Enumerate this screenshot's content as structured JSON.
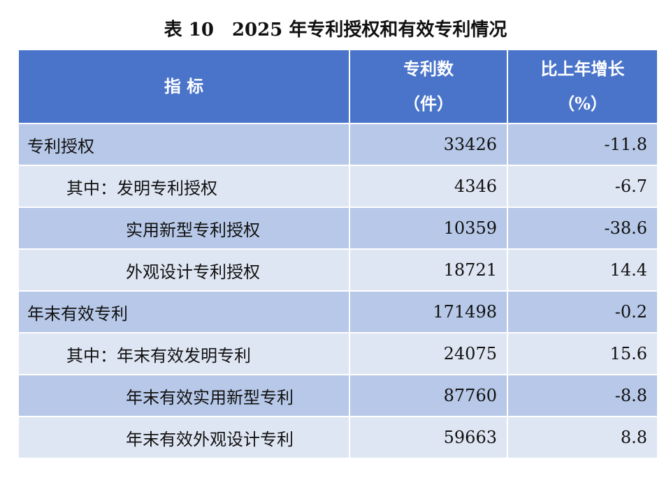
{
  "title": "表 10　2025 年专利授权和有效专利情况",
  "table": {
    "header": [
      [
        "指 标"
      ],
      [
        "专利数",
        "（件）"
      ],
      [
        "比上年增长",
        "（%）"
      ]
    ],
    "rows": [
      [
        "专利授权",
        33426,
        -11.8
      ],
      [
        "其中：发明专利授权",
        4346,
        -6.7
      ],
      [
        "实用新型专利授权",
        10359,
        -38.6
      ],
      [
        "外观设计专利授权",
        18721,
        14.4
      ],
      [
        "年末有效专利",
        171498,
        -0.2
      ],
      [
        "其中：年末有效发明专利",
        24075,
        15.6
      ],
      [
        "年末有效实用新型专利",
        87760,
        -8.8
      ],
      [
        "年末有效外观设计专利",
        59663,
        8.8
      ]
    ]
  }
}
